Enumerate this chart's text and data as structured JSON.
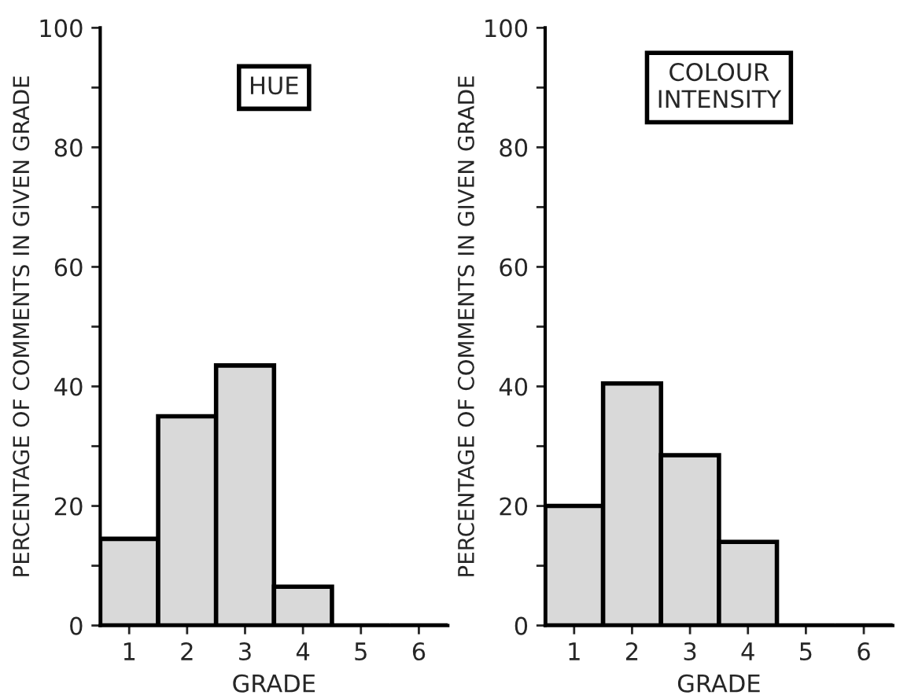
{
  "chart_data": [
    {
      "type": "bar",
      "title": "HUE",
      "xlabel": "GRADE",
      "ylabel": "PERCENTAGE OF COMMENTS IN GIVEN GRADE",
      "categories": [
        "1",
        "2",
        "3",
        "4",
        "5",
        "6"
      ],
      "values": [
        14.5,
        35,
        43.5,
        6.5,
        0,
        0
      ],
      "color": "#d9d9d9",
      "ylim": [
        0,
        100
      ],
      "yticks": [
        0,
        {
          "value": 10,
          "label": null
        },
        20,
        {
          "value": 30,
          "label": null
        },
        40,
        {
          "value": 50,
          "label": null
        },
        60,
        {
          "value": 70,
          "label": null
        },
        80,
        {
          "value": 90,
          "label": null
        },
        100
      ],
      "grid": false
    },
    {
      "type": "bar",
      "title": "COLOUR\nINTENSITY",
      "xlabel": "GRADE",
      "ylabel": "PERCENTAGE OF COMMENTS IN GIVEN GRADE",
      "categories": [
        "1",
        "2",
        "3",
        "4",
        "5",
        "6"
      ],
      "values": [
        20,
        40.5,
        28.5,
        14,
        0,
        0
      ],
      "color": "#d9d9d9",
      "ylim": [
        0,
        100
      ],
      "yticks": [
        0,
        {
          "value": 10,
          "label": null
        },
        20,
        {
          "value": 30,
          "label": null
        },
        40,
        {
          "value": 50,
          "label": null
        },
        60,
        {
          "value": 70,
          "label": null
        },
        80,
        {
          "value": 90,
          "label": null
        },
        100
      ],
      "grid": false
    }
  ]
}
